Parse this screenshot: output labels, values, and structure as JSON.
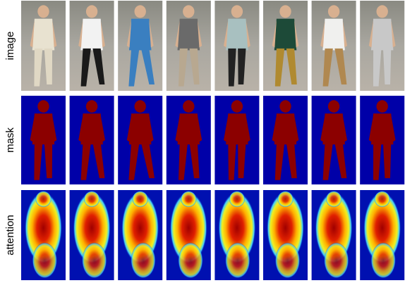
{
  "rows": [
    {
      "label": "image"
    },
    {
      "label": "mask"
    },
    {
      "label": "attention"
    }
  ]
}
